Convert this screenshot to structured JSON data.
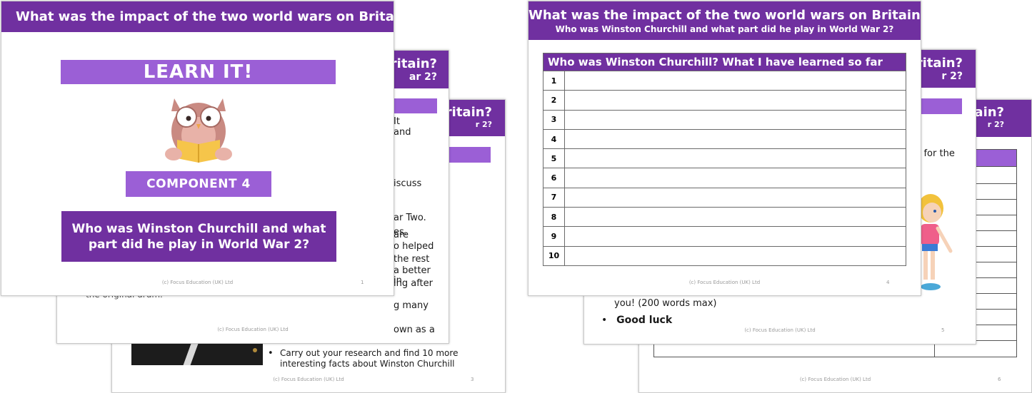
{
  "colors": {
    "purple_dark": "#7030a0",
    "purple_light": "#9b5fd6"
  },
  "common": {
    "title": "What was the impact of the two world wars on Britain?",
    "subtitle": "Who was Winston Churchill and what part did he play in World War 2?",
    "footer": "(c) Focus Education (UK) Ltd"
  },
  "left_deck": {
    "slide3": {
      "header_line1": "ritain?",
      "header_line2": "r 2?",
      "bullet_text": "Carry out your research and find 10 more interesting facts about Winston Churchill",
      "page": "3"
    },
    "slide2": {
      "header_line1": "ritain?",
      "header_line2": "ar 2?",
      "fragments": [
        "It",
        "and",
        "iscuss",
        "ar Two.",
        "es.",
        "are",
        "o helped",
        "the rest",
        "a better",
        "in",
        "ing after",
        "g many",
        "own as a"
      ],
      "fragment_bottom": "the original drum.",
      "page": "2"
    },
    "slide1": {
      "learn_it": "LEARN IT!",
      "component": "COMPONENT 4",
      "page": "1",
      "owl_icon": "owl-reading-book-icon"
    }
  },
  "right_deck": {
    "slide6": {
      "header_line1": "ritain?",
      "header_line2": "r 2?",
      "page": "6"
    },
    "slide5": {
      "header_line1": "ritain?",
      "header_line2": "r 2?",
      "side_text": "r for the",
      "body_text": "you! (200 words max)",
      "bullet": "Good luck",
      "page": "5",
      "cartoon_icon": "cartoon-girl-icon"
    },
    "slide4": {
      "table_header": "Who was Winston Churchill? What I have learned so far",
      "rows": [
        "1",
        "2",
        "3",
        "4",
        "5",
        "6",
        "7",
        "8",
        "9",
        "10"
      ],
      "page": "4"
    }
  }
}
